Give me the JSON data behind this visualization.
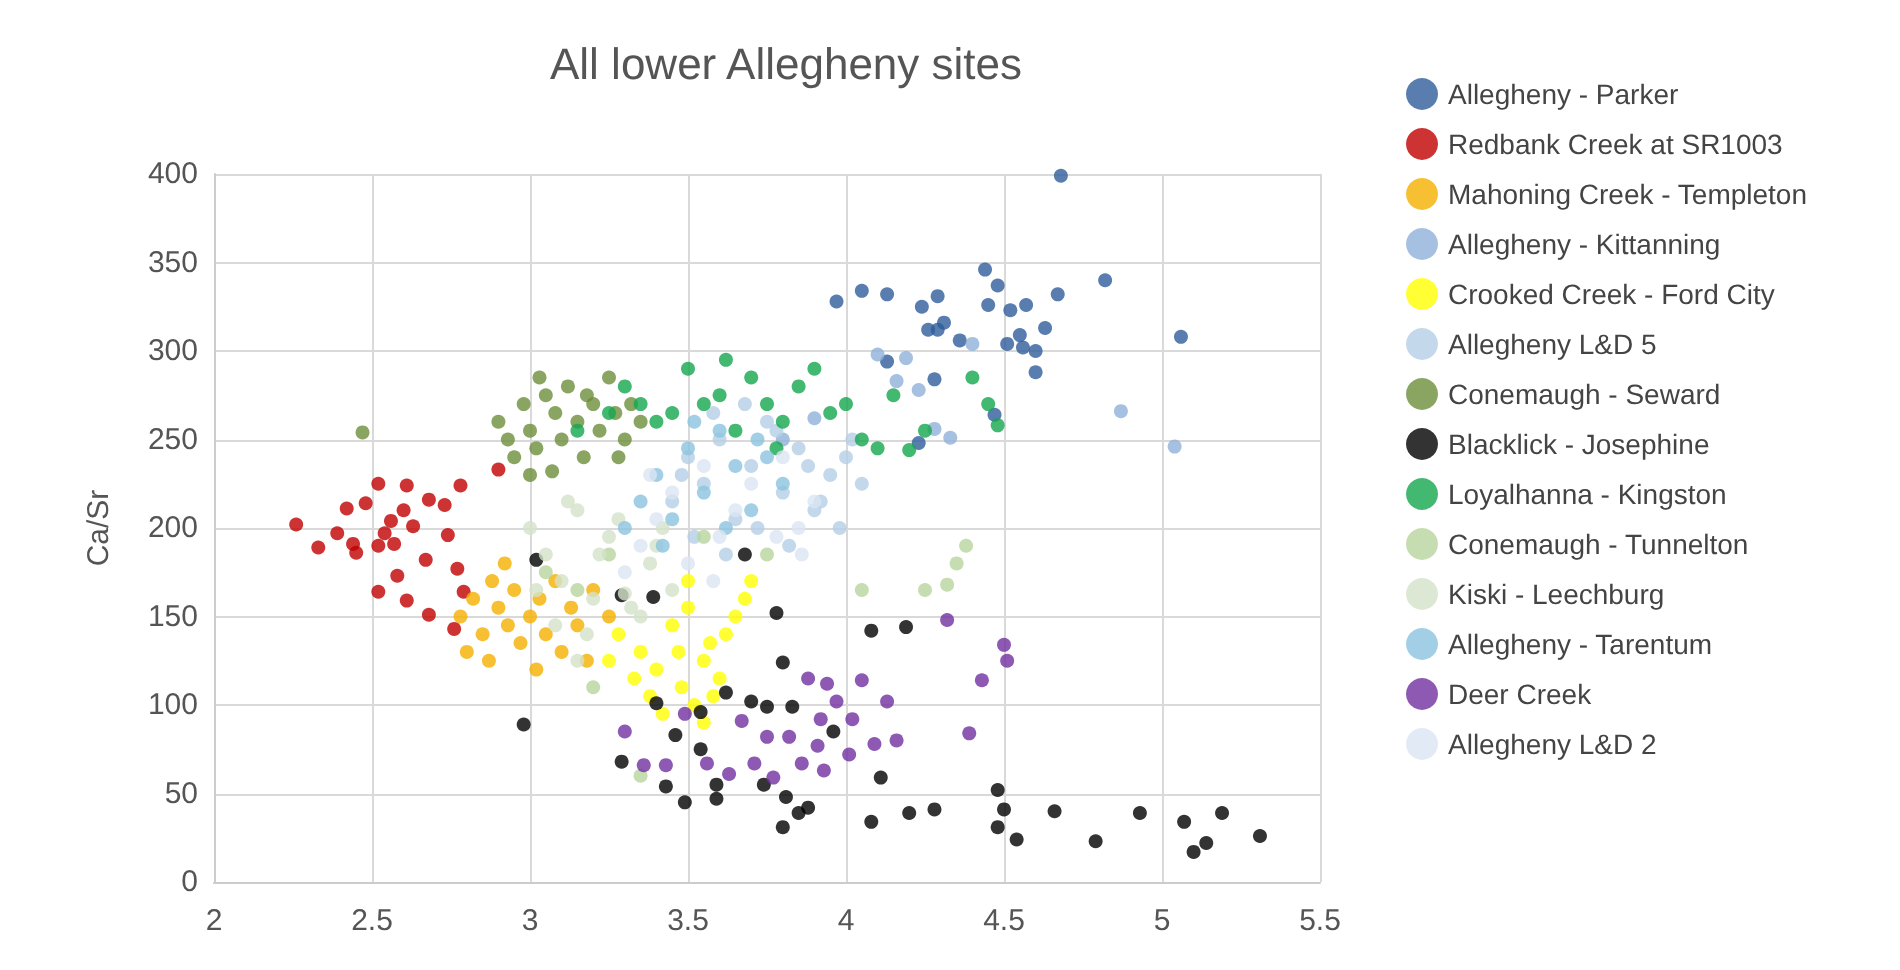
{
  "chart_data": {
    "type": "scatter",
    "title": "All lower Allegheny sites",
    "ylabel": "Ca/Sr",
    "xlim": [
      2,
      5.5
    ],
    "xticks": [
      2,
      2.5,
      3,
      3.5,
      4,
      4.5,
      5,
      5.5
    ],
    "ylim": [
      0,
      400
    ],
    "yticks": [
      0,
      50,
      100,
      150,
      200,
      250,
      300,
      350,
      400
    ],
    "grid": true,
    "legend": "right",
    "marker": "circle",
    "series": [
      {
        "name": "Allegheny - Parker",
        "color": "#2e5c9a",
        "x": [
          4.68,
          4.82,
          5.06,
          4.44,
          4.67,
          3.97,
          4.05,
          4.13,
          4.29,
          4.24,
          4.45,
          4.52,
          4.57,
          4.63,
          4.56,
          4.51,
          4.6,
          4.6,
          4.29,
          4.31,
          4.36,
          4.26,
          4.28,
          4.47,
          4.23,
          4.13,
          4.48,
          4.55
        ],
        "values": [
          399,
          340,
          308,
          346,
          332,
          328,
          334,
          332,
          331,
          325,
          326,
          323,
          326,
          313,
          302,
          304,
          300,
          288,
          312,
          316,
          306,
          312,
          284,
          264,
          248,
          294,
          337,
          309
        ]
      },
      {
        "name": "Redbank Creek at SR1003",
        "color": "#c00000",
        "x": [
          2.9,
          2.78,
          2.61,
          2.52,
          2.26,
          2.33,
          2.42,
          2.45,
          2.52,
          2.56,
          2.6,
          2.63,
          2.68,
          2.73,
          2.74,
          2.67,
          2.77,
          2.58,
          2.52,
          2.61,
          2.68,
          2.76,
          2.79,
          2.39,
          2.44,
          2.54,
          2.57,
          2.48
        ],
        "values": [
          233,
          224,
          224,
          225,
          202,
          189,
          211,
          186,
          190,
          204,
          210,
          201,
          216,
          213,
          196,
          182,
          177,
          173,
          164,
          159,
          151,
          143,
          164,
          197,
          191,
          197,
          191,
          214
        ]
      },
      {
        "name": "Mahoning Creek - Templeton",
        "color": "#f5b000",
        "x": [
          2.78,
          2.82,
          2.85,
          2.88,
          2.9,
          2.93,
          2.95,
          2.97,
          3,
          3.03,
          3.05,
          3.08,
          3.1,
          3.13,
          3.15,
          3.18,
          2.8,
          2.87,
          3.02,
          3.2,
          2.92,
          3.25
        ],
        "values": [
          150,
          160,
          140,
          170,
          155,
          145,
          165,
          135,
          150,
          160,
          140,
          170,
          130,
          155,
          145,
          125,
          130,
          125,
          120,
          165,
          180,
          150
        ]
      },
      {
        "name": "Allegheny - Kittanning",
        "color": "#8fb0d8",
        "x": [
          4.87,
          5.04,
          4.33,
          4.28,
          4.4,
          4.19,
          4.1,
          4.16,
          4.23,
          3.9,
          3.8
        ],
        "values": [
          266,
          246,
          251,
          256,
          304,
          296,
          298,
          283,
          278,
          262,
          250
        ]
      },
      {
        "name": "Crooked Creek - Ford City",
        "color": "#ffff00",
        "x": [
          3.35,
          3.4,
          3.45,
          3.48,
          3.5,
          3.52,
          3.55,
          3.57,
          3.6,
          3.62,
          3.65,
          3.68,
          3.42,
          3.38,
          3.55,
          3.47,
          3.33,
          3.28,
          3.58,
          3.7,
          3.25,
          3.5
        ],
        "values": [
          130,
          120,
          145,
          110,
          155,
          100,
          125,
          135,
          115,
          140,
          150,
          160,
          95,
          105,
          90,
          130,
          115,
          140,
          105,
          170,
          125,
          170
        ]
      },
      {
        "name": "Allegheny L&D 5",
        "color": "#b4cfe6",
        "x": [
          3.45,
          3.5,
          3.55,
          3.6,
          3.65,
          3.7,
          3.75,
          3.8,
          3.85,
          3.9,
          3.95,
          4,
          4.05,
          3.52,
          3.62,
          3.72,
          3.82,
          3.92,
          3.58,
          3.68,
          3.78,
          3.88,
          3.98,
          3.48,
          4.02
        ],
        "values": [
          215,
          240,
          225,
          250,
          205,
          235,
          260,
          220,
          245,
          210,
          230,
          240,
          225,
          195,
          185,
          200,
          190,
          215,
          265,
          270,
          255,
          235,
          200,
          230,
          250
        ]
      },
      {
        "name": "Conemaugh - Seward",
        "color": "#6b8e3a",
        "x": [
          2.47,
          2.9,
          2.93,
          2.95,
          2.98,
          3,
          3.02,
          3.05,
          3.08,
          3.1,
          3.12,
          3.15,
          3.17,
          3.2,
          3.22,
          3.25,
          3.27,
          3.3,
          3.32,
          3.35,
          3,
          3.07,
          3.18,
          3.28,
          3.03
        ],
        "values": [
          254,
          260,
          250,
          240,
          270,
          255,
          245,
          275,
          265,
          250,
          280,
          260,
          240,
          270,
          255,
          285,
          265,
          250,
          270,
          260,
          230,
          232,
          275,
          240,
          285
        ]
      },
      {
        "name": "Blacklick - Josephine",
        "color": "#000000",
        "x": [
          3.68,
          3.78,
          4.08,
          4.19,
          3.8,
          3.62,
          3.75,
          3.83,
          3.7,
          3.54,
          3.46,
          3.96,
          3.54,
          4.11,
          3.74,
          3.59,
          3.59,
          3.49,
          3.81,
          3.88,
          3.85,
          3.8,
          4.08,
          4.2,
          4.28,
          4.48,
          4.5,
          4.48,
          4.54,
          4.66,
          4.79,
          4.93,
          5.07,
          5.19,
          5.1,
          5.14,
          5.31,
          3.02,
          2.98,
          3.29,
          3.4,
          3.43,
          3.29,
          3.39
        ],
        "values": [
          185,
          152,
          142,
          144,
          124,
          107,
          99,
          99,
          102,
          96,
          83,
          85,
          75,
          59,
          55,
          55,
          47,
          45,
          48,
          42,
          39,
          31,
          34,
          39,
          41,
          52,
          41,
          31,
          24,
          40,
          23,
          39,
          34,
          39,
          17,
          22,
          26,
          182,
          89,
          68,
          101,
          54,
          162,
          161
        ]
      },
      {
        "name": "Loyalhanna - Kingston",
        "color": "#14a64e",
        "x": [
          3.25,
          3.3,
          3.35,
          3.4,
          3.45,
          3.5,
          3.55,
          3.6,
          3.65,
          3.7,
          3.75,
          3.8,
          3.85,
          3.9,
          3.95,
          4,
          4.05,
          4.1,
          4.15,
          4.25,
          4.4,
          4.45,
          4.48,
          4.2,
          3.62,
          3.15,
          3.78
        ],
        "values": [
          265,
          280,
          270,
          260,
          265,
          290,
          270,
          275,
          255,
          285,
          270,
          260,
          280,
          290,
          265,
          270,
          250,
          245,
          275,
          255,
          285,
          270,
          258,
          244,
          295,
          255,
          245
        ]
      },
      {
        "name": "Conemaugh - Tunnelton",
        "color": "#b8d49e",
        "x": [
          3.05,
          3.15,
          3.25,
          3.75,
          4.05,
          4.25,
          4.35,
          4.38,
          4.32,
          3.55,
          3.2,
          3.35
        ],
        "values": [
          175,
          165,
          185,
          185,
          165,
          165,
          180,
          190,
          168,
          195,
          110,
          60
        ]
      },
      {
        "name": "Kiski - Leechburg",
        "color": "#d3e2c8",
        "x": [
          3,
          3.05,
          3.1,
          3.15,
          3.2,
          3.25,
          3.3,
          3.35,
          3.4,
          3.45,
          3.08,
          3.18,
          3.28,
          3.38,
          3.12,
          3.22,
          3.32,
          3.02,
          3.42,
          3.15
        ],
        "values": [
          200,
          185,
          170,
          210,
          160,
          195,
          163,
          150,
          190,
          165,
          145,
          140,
          205,
          180,
          215,
          185,
          155,
          165,
          200,
          125
        ]
      },
      {
        "name": "Allegheny - Tarentum",
        "color": "#8cc3e0",
        "x": [
          3.3,
          3.35,
          3.4,
          3.45,
          3.5,
          3.55,
          3.6,
          3.65,
          3.7,
          3.75,
          3.8,
          3.42,
          3.52,
          3.62,
          3.72
        ],
        "values": [
          200,
          215,
          230,
          205,
          245,
          220,
          255,
          235,
          210,
          240,
          225,
          190,
          260,
          200,
          250
        ]
      },
      {
        "name": "Deer Creek",
        "color": "#7030a0",
        "x": [
          4.32,
          4.5,
          4.51,
          4.43,
          4.39,
          3.88,
          3.94,
          4.05,
          4.13,
          3.97,
          4.02,
          3.92,
          4.16,
          4.09,
          4.01,
          3.82,
          3.75,
          3.86,
          3.93,
          3.71,
          3.63,
          3.56,
          3.49,
          3.67,
          3.91,
          3.77,
          3.36,
          3.3,
          3.43
        ],
        "values": [
          148,
          134,
          125,
          114,
          84,
          115,
          112,
          114,
          102,
          102,
          92,
          92,
          80,
          78,
          72,
          82,
          82,
          67,
          63,
          67,
          61,
          67,
          95,
          91,
          77,
          59,
          66,
          85,
          66
        ]
      },
      {
        "name": "Allegheny L&D 2",
        "color": "#d9e5f2",
        "x": [
          3.3,
          3.35,
          3.4,
          3.45,
          3.5,
          3.55,
          3.6,
          3.65,
          3.7,
          3.86,
          3.8,
          3.85,
          3.9,
          3.38,
          3.58,
          3.78
        ],
        "values": [
          175,
          190,
          205,
          220,
          180,
          235,
          195,
          210,
          225,
          185,
          240,
          200,
          215,
          230,
          170,
          195
        ]
      }
    ]
  }
}
